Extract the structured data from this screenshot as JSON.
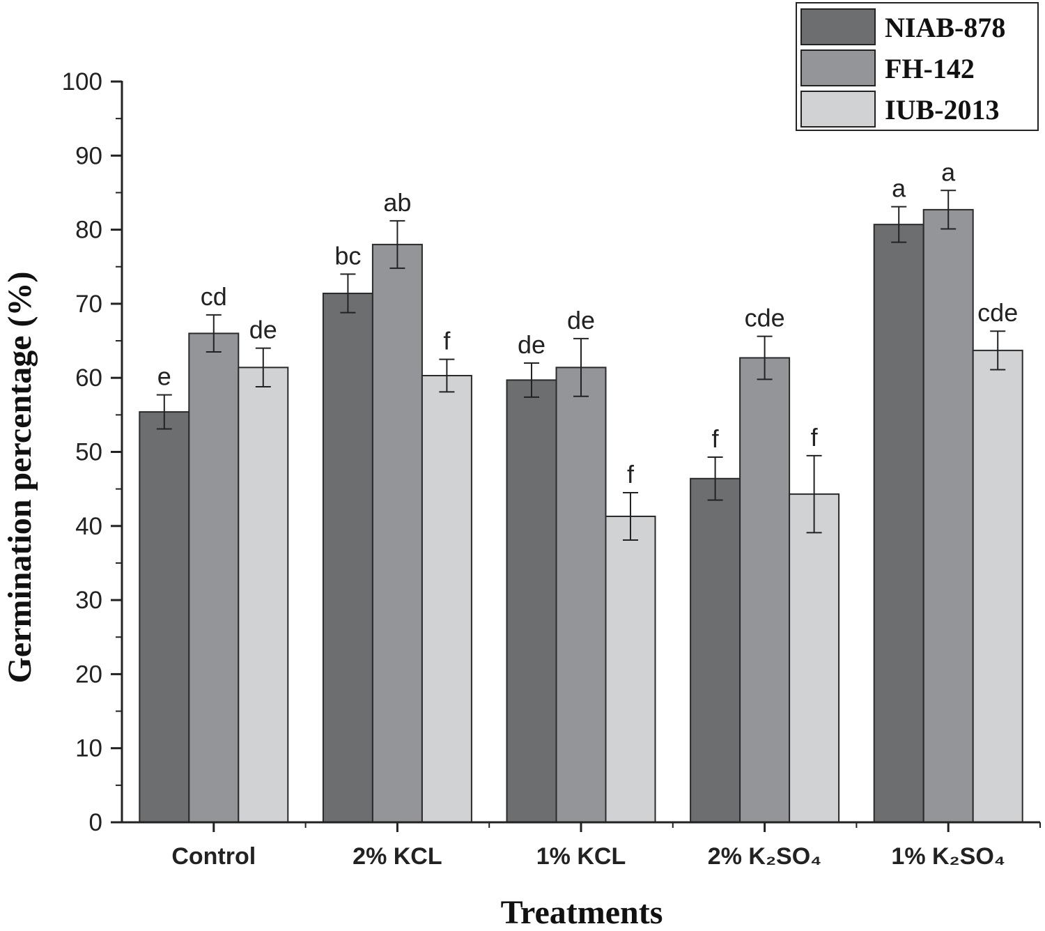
{
  "chart_data": {
    "type": "bar",
    "title": "",
    "xlabel": "Treatments",
    "ylabel": "Germination percentage (%)",
    "ylim": [
      0,
      100
    ],
    "yticks": [
      "0",
      "10",
      "20",
      "30",
      "40",
      "50",
      "60",
      "70",
      "80",
      "90",
      "100"
    ],
    "categories": [
      "Control",
      "2% KCL",
      "1% KCL",
      "2% K₂SO₄",
      "1% K₂SO₄"
    ],
    "legend_position": "top-right",
    "grid": false,
    "series": [
      {
        "name": "NIAB-878",
        "color": "#6d6e70",
        "values": [
          55.4,
          71.4,
          59.7,
          46.4,
          80.7
        ],
        "errors": [
          2.3,
          2.6,
          2.3,
          2.9,
          2.4
        ],
        "labels": [
          "e",
          "bc",
          "de",
          "f",
          "a"
        ]
      },
      {
        "name": "FH-142",
        "color": "#939598",
        "values": [
          66.0,
          78.0,
          61.4,
          62.7,
          82.7
        ],
        "errors": [
          2.5,
          3.2,
          3.9,
          2.9,
          2.6
        ],
        "labels": [
          "cd",
          "ab",
          "de",
          "cde",
          "a"
        ]
      },
      {
        "name": "IUB-2013",
        "color": "#d1d2d4",
        "values": [
          61.4,
          60.3,
          41.3,
          44.3,
          63.7
        ],
        "errors": [
          2.6,
          2.2,
          3.2,
          5.2,
          2.6
        ],
        "labels": [
          "de",
          "f",
          "f",
          "f",
          "cde"
        ]
      }
    ]
  }
}
